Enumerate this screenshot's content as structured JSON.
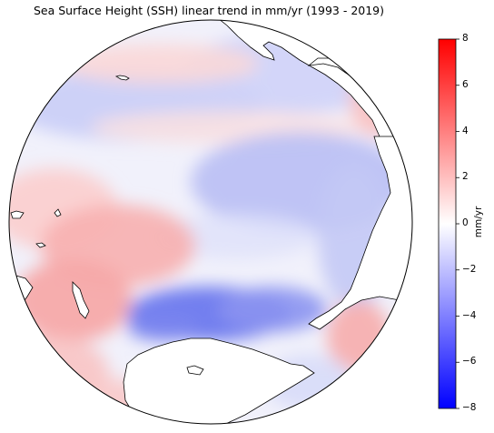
{
  "title": "Sea Surface Height (SSH) linear trend in mm/yr (1993 - 2019)",
  "colorbar": {
    "label": "mm/yr",
    "ticks": [
      "8",
      "6",
      "4",
      "2",
      "0",
      "−2",
      "−4",
      "−6",
      "−8"
    ],
    "min": -8,
    "max": 8,
    "colormap": "bwr",
    "colors": {
      "high": "#ff0000",
      "mid": "#ffffff",
      "low": "#0000ff"
    }
  },
  "map": {
    "projection": "orthographic",
    "land_color": "#ffffff",
    "coastline_color": "#000000"
  }
}
